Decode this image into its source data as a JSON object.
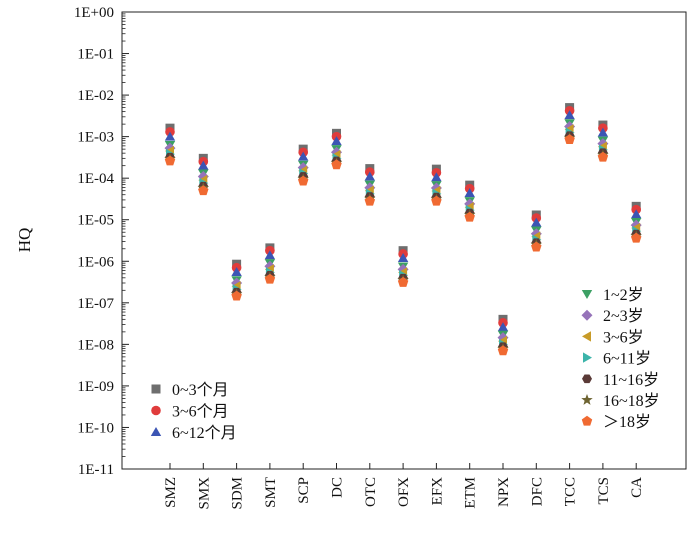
{
  "chart_data": {
    "type": "scatter",
    "title": "",
    "xlabel": "",
    "ylabel": "HQ",
    "y_scale": "log",
    "ylim": [
      1e-11,
      1
    ],
    "y_tick_labels": [
      "1E-11",
      "1E-10",
      "1E-09",
      "1E-08",
      "1E-07",
      "1E-06",
      "1E-05",
      "1E-04",
      "1E-03",
      "1E-02",
      "1E-01",
      "1E+00"
    ],
    "categories": [
      "SMZ",
      "SMX",
      "SDM",
      "SMT",
      "SCP",
      "DC",
      "OTC",
      "OFX",
      "EFX",
      "ETM",
      "NPX",
      "DFC",
      "TCC",
      "TCS",
      "CA"
    ],
    "grid": false,
    "legend_placement": [
      "bottom-left",
      "bottom-right"
    ],
    "series": [
      {
        "name": "0~3个月",
        "marker": "square",
        "color": "#6e6e6e",
        "values": [
          0.0016,
          0.0003,
          8.5e-07,
          2.1e-06,
          0.0005,
          0.0012,
          0.00017,
          1.8e-06,
          0.000165,
          6.8e-05,
          4e-08,
          1.3e-05,
          0.005,
          0.0019,
          2.1e-05
        ]
      },
      {
        "name": "3~6个月",
        "marker": "circle",
        "color": "#e03c3c",
        "values": [
          0.0013,
          0.00025,
          7e-07,
          1.8e-06,
          0.00042,
          0.001,
          0.00014,
          1.5e-06,
          0.000135,
          5.6e-05,
          3.3e-08,
          1.1e-05,
          0.0042,
          0.0016,
          1.75e-05
        ]
      },
      {
        "name": "6~12个月",
        "marker": "triangle-up",
        "color": "#3c55b4",
        "values": [
          0.001,
          0.0002,
          5.5e-07,
          1.4e-06,
          0.00033,
          0.00078,
          0.00011,
          1.2e-06,
          0.000105,
          4.4e-05,
          2.6e-08,
          8.5e-06,
          0.0033,
          0.00125,
          1.35e-05
        ]
      },
      {
        "name": "1~2岁",
        "marker": "triangle-down",
        "color": "#3ca064",
        "values": [
          0.00063,
          0.00013,
          3.5e-07,
          9e-07,
          0.00021,
          0.0005,
          7e-05,
          7.5e-07,
          6.8e-05,
          2.8e-05,
          1.7e-08,
          5.5e-06,
          0.0021,
          0.0008,
          8.8e-06
        ]
      },
      {
        "name": "2~3岁",
        "marker": "diamond",
        "color": "#9673b9",
        "values": [
          0.00053,
          0.00011,
          3e-07,
          7.6e-07,
          0.00018,
          0.00042,
          5.9e-05,
          6.4e-07,
          5.8e-05,
          2.4e-05,
          1.45e-08,
          4.6e-06,
          0.00175,
          0.00068,
          7.4e-06
        ]
      },
      {
        "name": "3~6岁",
        "marker": "triangle-left",
        "color": "#c89b28",
        "values": [
          0.00045,
          9e-05,
          2.5e-07,
          6.4e-07,
          0.00015,
          0.00036,
          5e-05,
          5.4e-07,
          4.9e-05,
          2e-05,
          1.2e-08,
          3.9e-06,
          0.0015,
          0.00057,
          6.3e-06
        ]
      },
      {
        "name": "6~11岁",
        "marker": "triangle-right",
        "color": "#3cb4aa",
        "values": [
          0.00038,
          7.6e-05,
          2.1e-07,
          5.4e-07,
          0.00013,
          0.0003,
          4.2e-05,
          4.6e-07,
          4.2e-05,
          1.7e-05,
          1e-08,
          3.3e-06,
          0.00125,
          0.00048,
          5.3e-06
        ]
      },
      {
        "name": "11~16岁",
        "marker": "hexagon",
        "color": "#5a3a37",
        "values": [
          0.00032,
          6.4e-05,
          1.8e-07,
          4.6e-07,
          0.00011,
          0.00026,
          3.6e-05,
          3.9e-07,
          3.5e-05,
          1.45e-05,
          8.8e-09,
          2.8e-06,
          0.00105,
          0.00041,
          4.5e-06
        ]
      },
      {
        "name": "16~18岁",
        "marker": "star",
        "color": "#6e6432",
        "values": [
          0.00029,
          5.8e-05,
          1.6e-07,
          4.1e-07,
          9.5e-05,
          0.00023,
          3.2e-05,
          3.5e-07,
          3.1e-05,
          1.3e-05,
          7.8e-09,
          2.5e-06,
          0.00093,
          0.00036,
          4e-06
        ]
      },
      {
        "name": "＞18岁",
        "marker": "pentagon",
        "color": "#f06a32",
        "values": [
          0.00026,
          5e-05,
          1.45e-07,
          3.7e-07,
          8.5e-05,
          0.00021,
          2.8e-05,
          3.1e-07,
          2.8e-05,
          1.15e-05,
          7e-09,
          2.2e-06,
          0.00085,
          0.00032,
          3.6e-06
        ]
      }
    ]
  }
}
